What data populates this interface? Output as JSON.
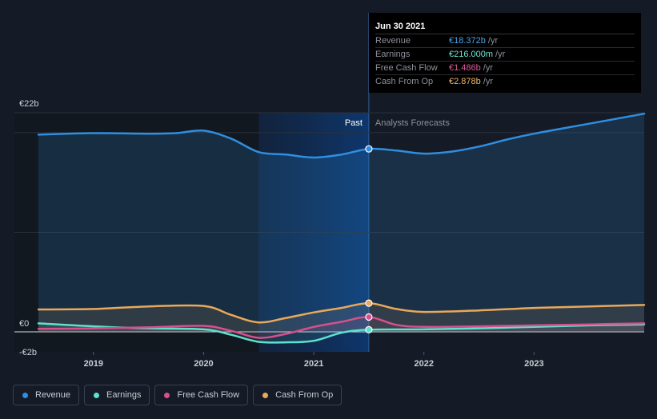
{
  "tooltip": {
    "date": "Jun 30 2021",
    "rows": [
      {
        "label": "Revenue",
        "value": "€18.372b",
        "unit": "/yr",
        "color": "#4aa3e8"
      },
      {
        "label": "Earnings",
        "value": "€216.000m",
        "unit": "/yr",
        "color": "#6ee7d8"
      },
      {
        "label": "Free Cash Flow",
        "value": "€1.486b",
        "unit": "/yr",
        "color": "#e0599a"
      },
      {
        "label": "Cash From Op",
        "value": "€2.878b",
        "unit": "/yr",
        "color": "#f0b76a"
      }
    ]
  },
  "legend": [
    {
      "label": "Revenue",
      "color": "#2f8ee0"
    },
    {
      "label": "Earnings",
      "color": "#5fe0cf"
    },
    {
      "label": "Free Cash Flow",
      "color": "#d6508c"
    },
    {
      "label": "Cash From Op",
      "color": "#eaa85a"
    }
  ],
  "chart_data": {
    "type": "line",
    "y_tick_labels": [
      "€22b",
      "€0",
      "-€2b"
    ],
    "ylim": [
      -2,
      22
    ],
    "xlim": [
      2018.5,
      2024.0
    ],
    "x_tick_labels": [
      "2019",
      "2020",
      "2021",
      "2022",
      "2023"
    ],
    "x_ticks": [
      2019,
      2020,
      2021,
      2022,
      2023
    ],
    "past_label": "Past",
    "forecast_label": "Analysts Forecasts",
    "divider_x": 2021.5,
    "shaded_range": [
      2020.5,
      2021.5
    ],
    "series": [
      {
        "name": "Revenue",
        "color": "#2f8ee0",
        "x": [
          2018.5,
          2019.0,
          2019.5,
          2019.75,
          2020.0,
          2020.25,
          2020.5,
          2020.75,
          2021.0,
          2021.25,
          2021.5,
          2021.75,
          2022.0,
          2022.25,
          2022.5,
          2022.75,
          2023.0,
          2023.5,
          2024.0
        ],
        "values": [
          19.8,
          19.95,
          19.9,
          19.95,
          20.2,
          19.4,
          18.05,
          17.8,
          17.5,
          17.8,
          18.372,
          18.2,
          17.9,
          18.1,
          18.6,
          19.3,
          19.9,
          20.9,
          21.9
        ]
      },
      {
        "name": "Earnings",
        "color": "#5fe0cf",
        "x": [
          2018.5,
          2019.0,
          2019.5,
          2020.0,
          2020.25,
          2020.5,
          2020.75,
          2021.0,
          2021.25,
          2021.5,
          2022.0,
          2022.5,
          2023.0,
          2023.5,
          2024.0
        ],
        "values": [
          0.85,
          0.55,
          0.35,
          0.25,
          -0.3,
          -1.0,
          -1.05,
          -0.9,
          -0.1,
          0.216,
          0.25,
          0.35,
          0.5,
          0.65,
          0.75
        ]
      },
      {
        "name": "Free Cash Flow",
        "color": "#d6508c",
        "x": [
          2018.5,
          2019.0,
          2019.5,
          2020.0,
          2020.25,
          2020.5,
          2020.75,
          2021.0,
          2021.25,
          2021.5,
          2021.75,
          2022.0,
          2022.5,
          2023.0,
          2023.5,
          2024.0
        ],
        "values": [
          0.3,
          0.35,
          0.45,
          0.6,
          0.1,
          -0.6,
          -0.2,
          0.5,
          1.0,
          1.486,
          0.7,
          0.5,
          0.55,
          0.65,
          0.75,
          0.85
        ]
      },
      {
        "name": "Cash From Op",
        "color": "#eaa85a",
        "x": [
          2018.5,
          2019.0,
          2019.5,
          2020.0,
          2020.25,
          2020.5,
          2020.75,
          2021.0,
          2021.25,
          2021.5,
          2021.75,
          2022.0,
          2022.5,
          2023.0,
          2023.5,
          2024.0
        ],
        "values": [
          2.25,
          2.3,
          2.55,
          2.6,
          1.7,
          0.95,
          1.4,
          1.95,
          2.4,
          2.878,
          2.3,
          2.0,
          2.15,
          2.4,
          2.55,
          2.7
        ]
      }
    ]
  }
}
